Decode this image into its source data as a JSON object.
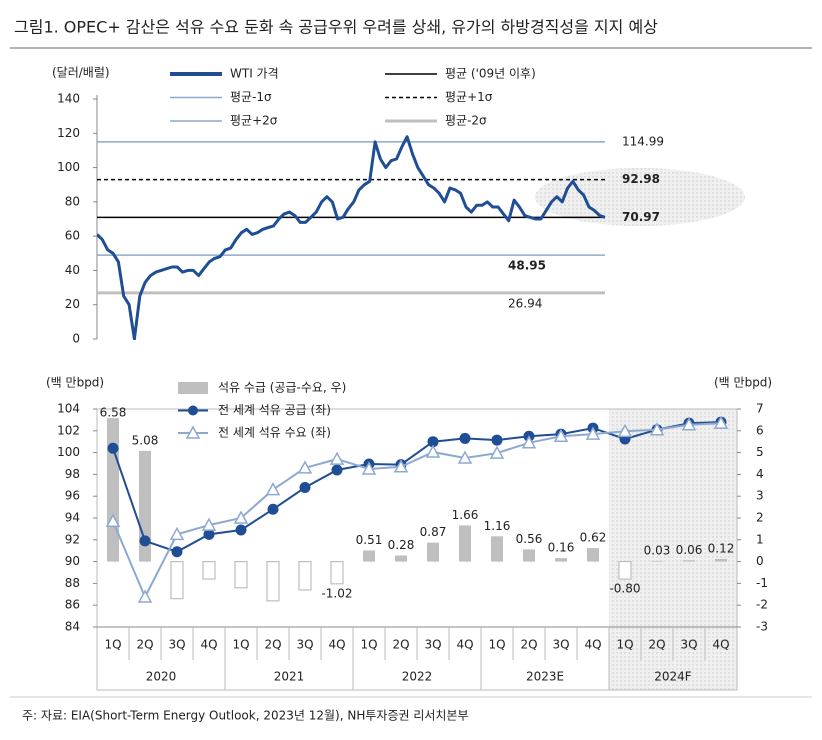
{
  "title": "그림1. OPEC+ 감산은 석유 수요 둔화 속 공급우위 우려를 상쇄, 유가의 하방경직성을 지지 예상",
  "footer": "주: 자료: EIA(Short-Term Energy Outlook, 2023년 12월), NH투자증권 리서치본부",
  "chart_data": [
    {
      "type": "line",
      "y_label": "(달러/배럴)",
      "ylim": [
        0,
        140
      ],
      "yticks": [
        0,
        20,
        40,
        60,
        80,
        100,
        120,
        140
      ],
      "series": [
        {
          "name": "WTI 가격",
          "color": "#1f4e95",
          "values": [
            61,
            58,
            52,
            50,
            45,
            25,
            20,
            0,
            25,
            33,
            37,
            39,
            40,
            41,
            42,
            42,
            39,
            40,
            40,
            37,
            41,
            45,
            47,
            48,
            52,
            53,
            58,
            62,
            64,
            61,
            62,
            64,
            65,
            66,
            70,
            73,
            74,
            72,
            68,
            68,
            71,
            74,
            80,
            83,
            80,
            70,
            71,
            76,
            80,
            87,
            90,
            92,
            115,
            105,
            100,
            104,
            105,
            112,
            118,
            108,
            100,
            95,
            90,
            88,
            85,
            80,
            88,
            87,
            85,
            77,
            74,
            78,
            78,
            80,
            77,
            77,
            73,
            69,
            81,
            77,
            72,
            71,
            70,
            70,
            75,
            80,
            83,
            80,
            88,
            92,
            87,
            84,
            77,
            75,
            72,
            71
          ]
        }
      ],
      "reference_lines": [
        {
          "name": "평균 ('09년 이후)",
          "value": 70.97,
          "color": "#000000",
          "style": "solid",
          "label_color": "#1f4e95",
          "label_side": "right",
          "label_bold": true
        },
        {
          "name": "평균-1σ",
          "value": 48.95,
          "color": "#8ea9c8",
          "style": "solid",
          "label_color": "#000000",
          "label_side": "below",
          "label_bold": true
        },
        {
          "name": "평균+1σ",
          "value": 92.98,
          "color": "#000000",
          "style": "dashed",
          "label_color": "#1f4e95",
          "label_side": "right",
          "label_bold": true
        },
        {
          "name": "평균+2σ",
          "value": 114.99,
          "color": "#8ea9c8",
          "style": "solid",
          "label_color": "#333333",
          "label_side": "right",
          "label_bold": false
        },
        {
          "name": "평균-2σ",
          "value": 26.94,
          "color": "#bfbfbf",
          "style": "thick",
          "label_color": "#333333",
          "label_side": "below",
          "label_bold": false
        }
      ]
    },
    {
      "type": "combo",
      "y_label": "(백 만bpd)",
      "y2_label": "(백 만bpd)",
      "categories": [
        "1Q",
        "2Q",
        "3Q",
        "4Q",
        "1Q",
        "2Q",
        "3Q",
        "4Q",
        "1Q",
        "2Q",
        "3Q",
        "4Q",
        "1Q",
        "2Q",
        "3Q",
        "4Q",
        "1Q",
        "2Q",
        "3Q",
        "4Q"
      ],
      "groups": [
        {
          "label": "2020",
          "count": 4
        },
        {
          "label": "2021",
          "count": 4
        },
        {
          "label": "2022",
          "count": 4
        },
        {
          "label": "2023E",
          "count": 4
        },
        {
          "label": "2024F",
          "count": 4,
          "shaded": true
        }
      ],
      "ylim": [
        84,
        104
      ],
      "yticks": [
        84,
        86,
        88,
        90,
        92,
        94,
        96,
        98,
        100,
        102,
        104
      ],
      "y2lim": [
        -3,
        7
      ],
      "y2ticks": [
        -3,
        -2,
        -1,
        0,
        1,
        2,
        3,
        4,
        5,
        6,
        7
      ],
      "series": [
        {
          "name": "석유 수급 (공급-수요, 우)",
          "type": "bar",
          "axis": "y2",
          "color": "#bfbfbf",
          "label_color": "#3d6eb4",
          "values": [
            6.58,
            5.08,
            -1.7,
            -0.8,
            -1.2,
            -1.8,
            -1.3,
            -1.02,
            0.51,
            0.28,
            0.87,
            1.66,
            1.16,
            0.56,
            0.16,
            0.62,
            -0.8,
            0.03,
            0.06,
            0.12
          ],
          "value_labels": [
            "6.58",
            "5.08",
            null,
            null,
            null,
            null,
            null,
            "-1.02",
            "0.51",
            "0.28",
            "0.87",
            "1.66",
            "1.16",
            "0.56",
            "0.16",
            "0.62",
            "-0.80",
            "0.03",
            "0.06",
            "0.12"
          ]
        },
        {
          "name": "전 세계 석유 공급 (좌)",
          "type": "line",
          "marker": "circle",
          "color": "#1f4e95",
          "values": [
            100.4,
            91.9,
            90.9,
            92.5,
            92.9,
            94.8,
            96.8,
            98.4,
            98.95,
            98.9,
            101.0,
            101.3,
            101.15,
            101.5,
            101.7,
            102.25,
            101.25,
            102.1,
            102.7,
            102.8
          ]
        },
        {
          "name": "전 세계 석유 수요 (좌)",
          "type": "line",
          "marker": "triangle",
          "color": "#8ea9d0",
          "values": [
            93.7,
            86.75,
            92.5,
            93.35,
            94.0,
            96.6,
            98.6,
            99.4,
            98.5,
            98.7,
            100.05,
            99.5,
            99.95,
            100.9,
            101.5,
            101.7,
            101.95,
            102.1,
            102.55,
            102.7
          ]
        }
      ]
    }
  ]
}
